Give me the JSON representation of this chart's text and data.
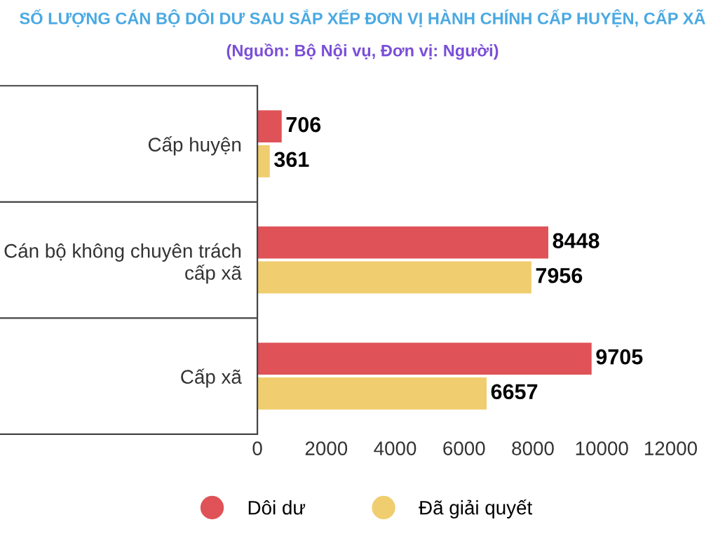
{
  "chart_data": {
    "type": "bar",
    "orientation": "horizontal",
    "title": "SỐ LƯỢNG CÁN BỘ DÔI DƯ SAU SẮP XẾP ĐƠN VỊ HÀNH CHÍNH CẤP HUYỆN, CẤP XÃ",
    "subtitle": "(Nguồn: Bộ Nội vụ, Đơn vị: Người)",
    "categories": [
      "Cấp huyện",
      "Cán bộ không chuyên trách cấp xã",
      "Cấp xã"
    ],
    "series": [
      {
        "name": "Dôi dư",
        "color": "#df5257",
        "values": [
          706,
          8448,
          9705
        ]
      },
      {
        "name": "Đã giải quyết",
        "color": "#f0cd6e",
        "values": [
          361,
          7956,
          6657
        ]
      }
    ],
    "xlim": [
      0,
      12000
    ],
    "xticks": [
      0,
      2000,
      4000,
      6000,
      8000,
      10000,
      12000
    ],
    "data_labels": true,
    "grid": false,
    "legend": "bottom"
  }
}
